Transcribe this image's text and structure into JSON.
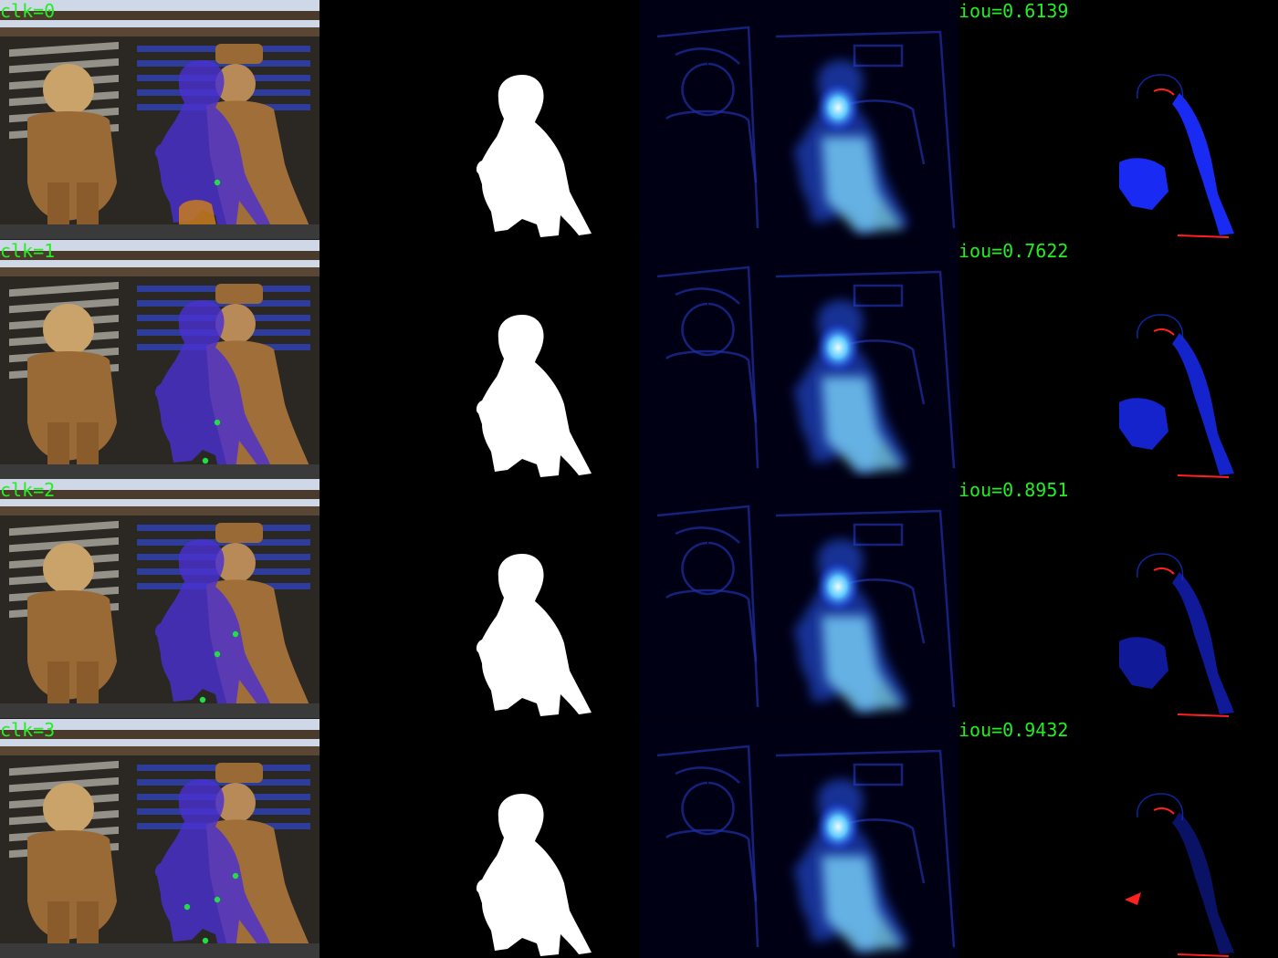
{
  "panels": [
    {
      "clk_label": "clk=0",
      "iou_label": "iou=0.6139",
      "clicks": 1
    },
    {
      "clk_label": "clk=1",
      "iou_label": "iou=0.7622",
      "clicks": 2
    },
    {
      "clk_label": "clk=2",
      "iou_label": "iou=0.8951",
      "clicks": 3
    },
    {
      "clk_label": "clk=3",
      "iou_label": "iou=0.9432",
      "clicks": 4
    }
  ],
  "colors": {
    "label": "#22ee22",
    "click_point": "#22dd44",
    "mask": "#ffffff",
    "overlay": "#4a2fd0",
    "error_fn": "#1a2cff",
    "error_fp": "#ff2020",
    "heat": "#3a8cff"
  }
}
